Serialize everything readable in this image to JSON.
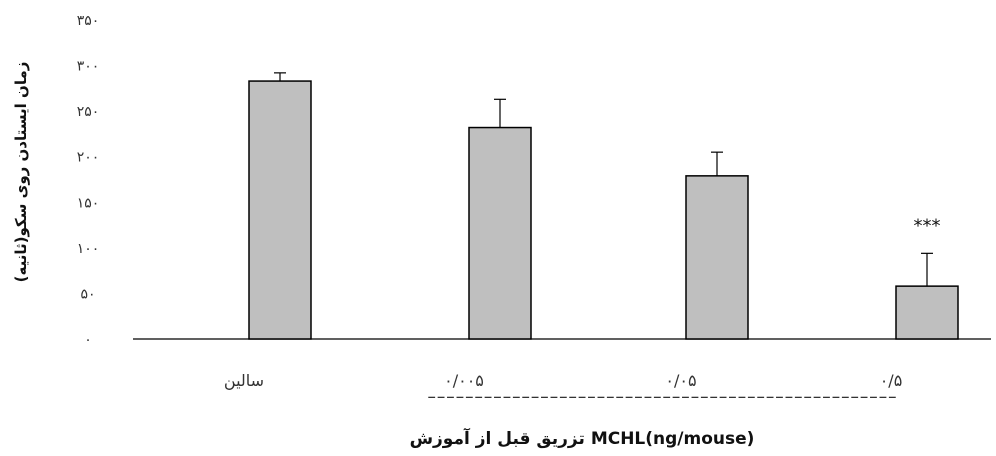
{
  "chart_data": {
    "type": "bar",
    "categories": [
      "سالین",
      "۰/۰۰۵",
      "۰/۰۵",
      "۰/۵"
    ],
    "values": [
      283,
      232,
      179,
      58
    ],
    "errors": [
      9,
      31,
      26,
      36
    ],
    "significance": [
      "",
      "",
      "",
      "***"
    ],
    "ylabel": "زمان ایستادن روی سکو(ثانیه)",
    "xlabel": "MCHL(ng/mouse) تزریق قبل از آموزش",
    "group_divider": "--------------------------------------------------",
    "ylim": [
      0,
      350
    ],
    "yticks": [
      {
        "value": 0,
        "label": "۰"
      },
      {
        "value": 50,
        "label": "۵۰"
      },
      {
        "value": 100,
        "label": "۱۰۰"
      },
      {
        "value": 150,
        "label": "۱۵۰"
      },
      {
        "value": 200,
        "label": "۲۰۰"
      },
      {
        "value": 250,
        "label": "۲۵۰"
      },
      {
        "value": 300,
        "label": "۳۰۰"
      },
      {
        "value": 350,
        "label": "۳۵۰"
      }
    ],
    "grid": false,
    "bar_color": "#bfbfbf",
    "bar_edge": "#000000"
  }
}
